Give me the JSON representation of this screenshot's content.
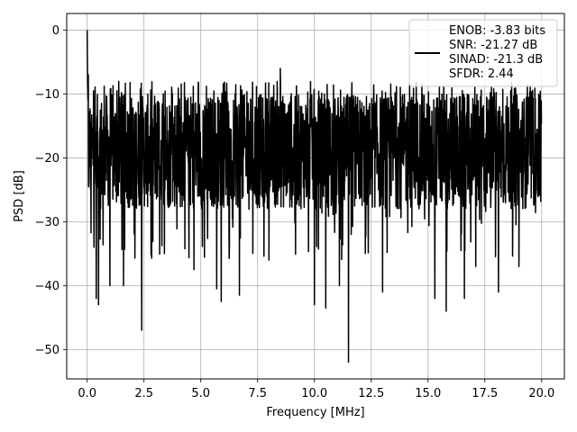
{
  "chart_data": {
    "type": "line",
    "title": "",
    "xlabel": "Frequency [MHz]",
    "ylabel": "PSD [dB]",
    "xlim": [
      -0.9,
      21.0
    ],
    "ylim": [
      -54.6,
      2.6
    ],
    "xticks": [
      0.0,
      2.5,
      5.0,
      7.5,
      10.0,
      12.5,
      15.0,
      17.5,
      20.0
    ],
    "xtick_labels": [
      "0.0",
      "2.5",
      "5.0",
      "7.5",
      "10.0",
      "12.5",
      "15.0",
      "17.5",
      "20.0"
    ],
    "yticks": [
      0,
      -10,
      -20,
      -30,
      -40,
      -50
    ],
    "ytick_labels": [
      "0",
      "−10",
      "−20",
      "−30",
      "−40",
      "−50"
    ],
    "grid": true,
    "legend_position": "top-right",
    "legend_entries": [
      "ENOB: -3.83 bits",
      "SNR: -21.27 dB",
      "SINAD: -21.3 dB",
      "SFDR: 2.44"
    ],
    "series": [
      {
        "color": "#000000",
        "description": "dense noise-floor PSD trace",
        "x_range": [
          0.0,
          20.0
        ],
        "peak": {
          "x": 0.0,
          "y": 0.0
        },
        "noise_band": {
          "upper": -10,
          "lower": -28
        },
        "min": {
          "x": 11.5,
          "y": -52
        },
        "notable_points": [
          {
            "x": 0.0,
            "y": 0.0
          },
          {
            "x": 0.05,
            "y": -7
          },
          {
            "x": 0.3,
            "y": -34
          },
          {
            "x": 0.4,
            "y": -42
          },
          {
            "x": 0.5,
            "y": -43
          },
          {
            "x": 1.0,
            "y": -40
          },
          {
            "x": 1.6,
            "y": -40
          },
          {
            "x": 2.4,
            "y": -47
          },
          {
            "x": 3.4,
            "y": -35
          },
          {
            "x": 4.7,
            "y": -37.5
          },
          {
            "x": 5.7,
            "y": -40.5
          },
          {
            "x": 5.9,
            "y": -42.5
          },
          {
            "x": 6.7,
            "y": -41.5
          },
          {
            "x": 8.0,
            "y": -36
          },
          {
            "x": 8.5,
            "y": -6
          },
          {
            "x": 10.0,
            "y": -43
          },
          {
            "x": 10.5,
            "y": -43.5
          },
          {
            "x": 11.1,
            "y": -40
          },
          {
            "x": 11.5,
            "y": -52
          },
          {
            "x": 13.0,
            "y": -41
          },
          {
            "x": 15.3,
            "y": -42
          },
          {
            "x": 15.8,
            "y": -44
          },
          {
            "x": 16.6,
            "y": -42
          },
          {
            "x": 17.1,
            "y": -37
          },
          {
            "x": 18.1,
            "y": -41
          },
          {
            "x": 19.0,
            "y": -37
          }
        ]
      }
    ]
  }
}
